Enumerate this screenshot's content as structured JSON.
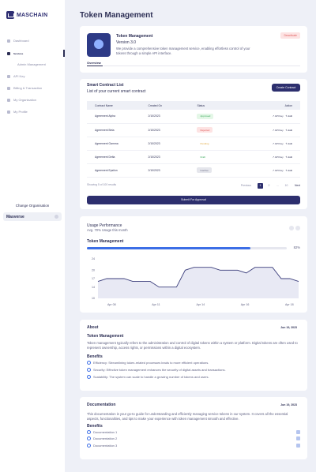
{
  "app": {
    "name": "MASCHAIN",
    "page_title": "Token Management"
  },
  "sidebar": {
    "items": [
      {
        "label": "Dashboard",
        "active": false
      },
      {
        "label": "Services",
        "active": true
      },
      {
        "label": "API Key",
        "active": false
      },
      {
        "label": "Billing & Transaction",
        "active": false
      },
      {
        "label": "My Organisation",
        "active": false
      },
      {
        "label": "My Profile",
        "active": false
      }
    ],
    "sub_item": "Admin Management",
    "org_label": "Change Organisation",
    "org_value": "Masverse"
  },
  "overview": {
    "name": "Token Management",
    "version": "Version 3.0",
    "description": "We provide a comprehensive token management service, enabling effortless control of your tokens through a simple API interface.",
    "status": "Deactivate",
    "tab": "Overview"
  },
  "contracts": {
    "title": "Smart Contract List",
    "subtitle": "List of your current smart contract",
    "create_label": "Create Contract",
    "columns": [
      "Contract Name",
      "Created On",
      "Status",
      "Action"
    ],
    "rows": [
      {
        "name": "Agreement Alpha",
        "date": "2/10/2023",
        "status": "Approved",
        "sc": "#e4f7e7",
        "tc": "#3aa85a"
      },
      {
        "name": "Agreement Beta",
        "date": "2/10/2023",
        "status": "Rejected",
        "sc": "#fde3e3",
        "tc": "#e06060"
      },
      {
        "name": "Agreement Gamma",
        "date": "2/10/2023",
        "status": "Pending",
        "sc": "#fff",
        "tc": "#e0a63a"
      },
      {
        "name": "Agreement Delta",
        "date": "2/10/2023",
        "status": "Draft",
        "sc": "#fff",
        "tc": "#3aa85a"
      },
      {
        "name": "Agreement Epsilon",
        "date": "2/10/2023",
        "status": "Inactive",
        "sc": "#e5e6ec",
        "tc": "#6d6f88"
      }
    ],
    "action_view": "API Key",
    "action_edit": "Edit",
    "showing": "Showing 5 of 100 results",
    "prev": "Previous",
    "next": "Next",
    "pages": [
      "1",
      "2",
      "...",
      "10"
    ],
    "submit": "Submit For Approval"
  },
  "usage": {
    "title": "Usage Performance",
    "subtitle": "Avg. 70% Usage this month",
    "series_label": "Token Management",
    "percent": "82%"
  },
  "chart_data": {
    "type": "area",
    "x_ticks": [
      "Apr 08",
      "Apr 11",
      "Apr 14",
      "Apr 16",
      "Apr 18"
    ],
    "y_ticks": [
      24,
      20,
      17,
      14,
      10
    ],
    "ylim": [
      10,
      24
    ],
    "values": [
      16,
      17,
      17,
      17,
      16,
      16,
      16,
      14,
      14,
      14,
      20,
      21,
      21,
      21,
      20,
      20,
      20,
      19,
      21,
      21,
      21,
      17,
      17,
      16
    ]
  },
  "about": {
    "title": "About",
    "date": "Jun 19, 2023",
    "heading": "Token Management",
    "text": "Token management typically refers to the administration and control of digital tokens within a system or platform. Digital tokens are often used to represent ownership, access rights, or permissions within a digital ecosystem.",
    "benefits_title": "Benefits",
    "benefits": [
      "Efficiency: Streamlining token-related processes leads to more efficient operations.",
      "Security: Effective token management enhances the security of digital assets and transactions.",
      "Scalability: The system can scale to handle a growing number of tokens and users."
    ]
  },
  "documentation": {
    "title": "Documentation",
    "date": "Jun 19, 2023",
    "text": "This documentation is your go-to guide for understanding and efficiently managing service tokens in our system. It covers all the essential aspects, functionalities, and tips to make your experience with token management smooth and effective.",
    "benefits_title": "Benefits",
    "items": [
      "Documentation 1",
      "Documentation 2",
      "Documentation 3"
    ]
  },
  "colors": {
    "accent": "#2d2f6e",
    "chart_line": "#3c3f7c",
    "progress": "#3c6ee6"
  }
}
